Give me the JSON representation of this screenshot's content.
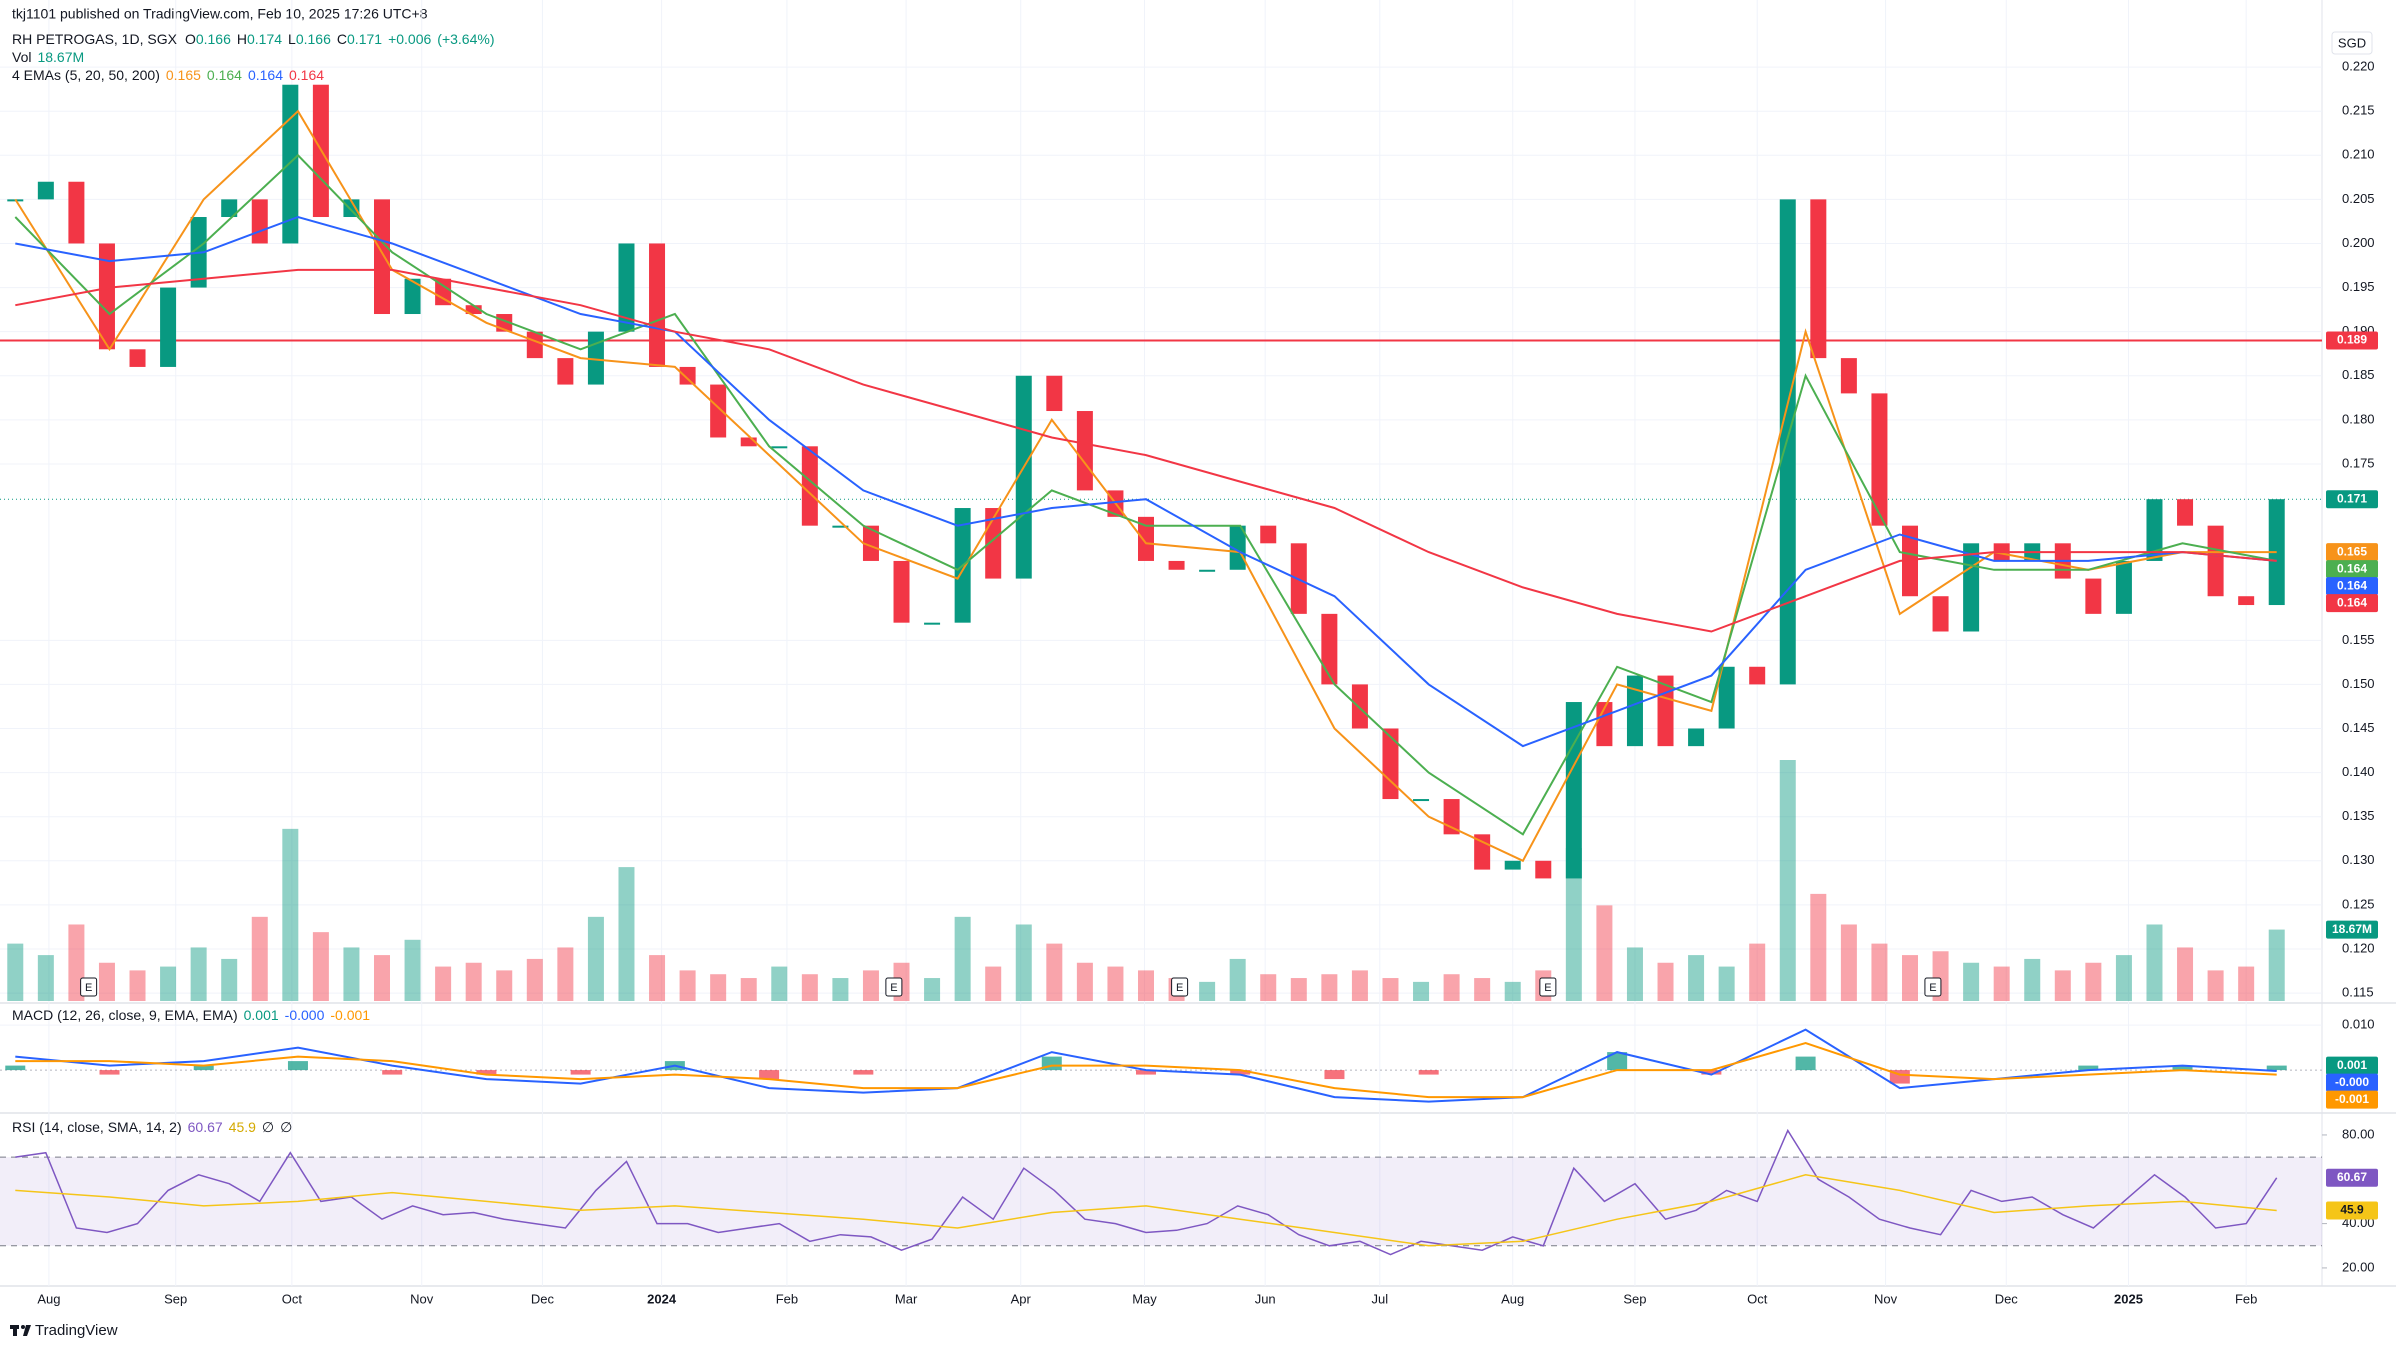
{
  "header": {
    "publisher": "tkj1101 published on TradingView.com, Feb 10, 2025 17:26 UTC+8",
    "currency": "SGD",
    "brand": "TradingView"
  },
  "chart_data": [
    {
      "type": "candlestick",
      "title": "RH PETROGAS, 1D, SGX",
      "ohlc_labels": [
        "O",
        "H",
        "L",
        "C"
      ],
      "ohlc": [
        0.166,
        0.174,
        0.166,
        0.171
      ],
      "change": {
        "value": 0.006,
        "label": "+0.006"
      },
      "change_pct": {
        "value": 3.64,
        "label": "(+3.64%)"
      },
      "ylim": [
        0.1141,
        0.225
      ],
      "yticks": [
        {
          "value": 0.22,
          "label": "0.220"
        },
        {
          "value": 0.215,
          "label": "0.215"
        },
        {
          "value": 0.21,
          "label": "0.210"
        },
        {
          "value": 0.205,
          "label": "0.205"
        },
        {
          "value": 0.2,
          "label": "0.200"
        },
        {
          "value": 0.195,
          "label": "0.195"
        },
        {
          "value": 0.19,
          "label": "0.190"
        },
        {
          "value": 0.185,
          "label": "0.185"
        },
        {
          "value": 0.18,
          "label": "0.180"
        },
        {
          "value": 0.175,
          "label": "0.175"
        },
        {
          "value": 0.155,
          "label": "0.155"
        },
        {
          "value": 0.15,
          "label": "0.150"
        },
        {
          "value": 0.145,
          "label": "0.145"
        },
        {
          "value": 0.14,
          "label": "0.140"
        },
        {
          "value": 0.135,
          "label": "0.135"
        },
        {
          "value": 0.13,
          "label": "0.130"
        },
        {
          "value": 0.125,
          "label": "0.125"
        },
        {
          "value": 0.12,
          "label": "0.120"
        },
        {
          "value": 0.115,
          "label": "0.115"
        }
      ],
      "up_color": "#089981",
      "down_color": "#f23645",
      "closes": [
        0.205,
        0.207,
        0.2,
        0.188,
        0.186,
        0.195,
        0.203,
        0.205,
        0.2,
        0.218,
        0.203,
        0.205,
        0.192,
        0.196,
        0.193,
        0.192,
        0.19,
        0.187,
        0.184,
        0.19,
        0.2,
        0.186,
        0.184,
        0.178,
        0.177,
        0.177,
        0.168,
        0.168,
        0.164,
        0.157,
        0.157,
        0.17,
        0.162,
        0.185,
        0.181,
        0.172,
        0.169,
        0.164,
        0.163,
        0.163,
        0.168,
        0.166,
        0.158,
        0.15,
        0.145,
        0.137,
        0.137,
        0.133,
        0.129,
        0.13,
        0.128,
        0.148,
        0.143,
        0.151,
        0.143,
        0.145,
        0.152,
        0.15,
        0.205,
        0.187,
        0.183,
        0.168,
        0.16,
        0.156,
        0.166,
        0.164,
        0.166,
        0.162,
        0.158,
        0.164,
        0.171,
        0.168,
        0.16,
        0.159,
        0.171
      ],
      "volume": {
        "name": "Vol",
        "last": {
          "value": 18.67,
          "label": "18.67M"
        },
        "values": [
          15,
          12,
          20,
          10,
          8,
          9,
          14,
          11,
          22,
          45,
          18,
          14,
          12,
          16,
          9,
          10,
          8,
          11,
          14,
          22,
          35,
          12,
          8,
          7,
          6,
          9,
          7,
          6,
          8,
          10,
          6,
          22,
          9,
          20,
          15,
          10,
          9,
          8,
          6,
          5,
          11,
          7,
          6,
          7,
          8,
          6,
          5,
          7,
          6,
          5,
          8,
          40,
          25,
          14,
          10,
          12,
          9,
          15,
          63,
          28,
          20,
          15,
          12,
          13,
          10,
          9,
          11,
          8,
          10,
          12,
          20,
          14,
          8,
          9,
          18.67
        ]
      },
      "emas": {
        "name": "4 EMAs (5, 20, 50, 200)",
        "series": [
          {
            "color": "#f7931a",
            "values": [
              0.205,
              0.188,
              0.205,
              0.215,
              0.197,
              0.191,
              0.187,
              0.186,
              0.176,
              0.166,
              0.162,
              0.18,
              0.166,
              0.165,
              0.145,
              0.135,
              0.13,
              0.15,
              0.147,
              0.19,
              0.158,
              0.165,
              0.163,
              0.165,
              0.165
            ]
          },
          {
            "color": "#4caf50",
            "values": [
              0.203,
              0.192,
              0.2,
              0.21,
              0.199,
              0.192,
              0.188,
              0.192,
              0.177,
              0.168,
              0.163,
              0.172,
              0.168,
              0.168,
              0.15,
              0.14,
              0.133,
              0.152,
              0.148,
              0.185,
              0.165,
              0.163,
              0.163,
              0.166,
              0.164
            ]
          },
          {
            "color": "#2962ff",
            "values": [
              0.2,
              0.198,
              0.199,
              0.203,
              0.2,
              0.196,
              0.192,
              0.19,
              0.18,
              0.172,
              0.168,
              0.17,
              0.171,
              0.165,
              0.16,
              0.15,
              0.143,
              0.147,
              0.151,
              0.163,
              0.167,
              0.164,
              0.164,
              0.165,
              0.164
            ]
          },
          {
            "color": "#f23645",
            "values": [
              0.193,
              0.195,
              0.196,
              0.197,
              0.197,
              0.195,
              0.193,
              0.19,
              0.188,
              0.184,
              0.181,
              0.178,
              0.176,
              0.173,
              0.17,
              0.165,
              0.161,
              0.158,
              0.156,
              0.16,
              0.164,
              0.165,
              0.165,
              0.165,
              0.164
            ]
          }
        ]
      },
      "hline": {
        "value": 0.189,
        "color": "#f23645"
      },
      "earnings": [
        "E",
        "E",
        "E",
        "E",
        "E"
      ],
      "xlabels": [
        "Aug",
        "Sep",
        "Oct",
        "Nov",
        "Dec",
        "2024",
        "Feb",
        "Mar",
        "Apr",
        "May",
        "Jun",
        "Jul",
        "Aug",
        "Sep",
        "Oct",
        "Nov",
        "Dec",
        "2025",
        "Feb"
      ]
    },
    {
      "type": "macd",
      "title": "MACD (12, 26, close, 9, EMA, EMA)",
      "ylim": [
        -0.0091,
        0.0147
      ],
      "yticks": [
        {
          "value": 0.01,
          "label": "0.010"
        }
      ],
      "histogram": {
        "values": [
          0.001,
          -0.001,
          0.001,
          0.002,
          -0.001,
          -0.001,
          -0.001,
          0.002,
          -0.002,
          -0.001,
          0,
          0.003,
          -0.001,
          -0.001,
          -0.002,
          -0.001,
          0,
          0.004,
          -0.001,
          0.003,
          -0.003,
          0,
          0.001,
          0.001,
          0.001
        ]
      },
      "macd": {
        "color": "#2962ff",
        "last_label": "-0.000",
        "values": [
          0.003,
          0.001,
          0.002,
          0.005,
          0.001,
          -0.002,
          -0.003,
          0.001,
          -0.004,
          -0.005,
          -0.004,
          0.004,
          0,
          -0.001,
          -0.006,
          -0.007,
          -0.006,
          0.004,
          -0.001,
          0.009,
          -0.004,
          -0.002,
          0,
          0.001,
          -0.0002
        ]
      },
      "signal": {
        "color": "#ff9800",
        "values": [
          0.002,
          0.002,
          0.001,
          0.003,
          0.002,
          -0.001,
          -0.002,
          -0.001,
          -0.002,
          -0.004,
          -0.004,
          0.001,
          0.001,
          0,
          -0.004,
          -0.006,
          -0.006,
          0,
          0,
          0.006,
          -0.001,
          -0.002,
          -0.001,
          0,
          -0.001
        ]
      }
    },
    {
      "type": "rsi",
      "title": "RSI (14, close, SMA, 14, 2)",
      "ylim": [
        13.2,
        89
      ],
      "yticks": [
        {
          "value": 80,
          "label": "80.00"
        },
        {
          "value": 40,
          "label": "40.00"
        },
        {
          "value": 20,
          "label": "20.00"
        }
      ],
      "bands": [
        70,
        30
      ],
      "rsi": {
        "color": "#7e57c2",
        "values": [
          70,
          72,
          38,
          36,
          40,
          55,
          62,
          58,
          50,
          72,
          50,
          52,
          42,
          48,
          44,
          45,
          42,
          40,
          38,
          55,
          68,
          40,
          40,
          36,
          38,
          40,
          32,
          35,
          34,
          28,
          33,
          52,
          42,
          65,
          55,
          42,
          40,
          36,
          37,
          40,
          48,
          44,
          35,
          30,
          32,
          26,
          32,
          30,
          28,
          34,
          30,
          65,
          50,
          58,
          42,
          46,
          55,
          50,
          82,
          60,
          52,
          42,
          38,
          35,
          55,
          50,
          52,
          44,
          38,
          50,
          62,
          52,
          38,
          40,
          60.67
        ]
      },
      "sma": {
        "color": "#f5c518",
        "values": [
          55,
          52,
          48,
          50,
          54,
          50,
          46,
          48,
          45,
          42,
          38,
          45,
          48,
          42,
          36,
          30,
          32,
          42,
          50,
          62,
          55,
          45,
          48,
          50,
          45.9
        ]
      },
      "extra": [
        "∅",
        "∅"
      ]
    }
  ]
}
